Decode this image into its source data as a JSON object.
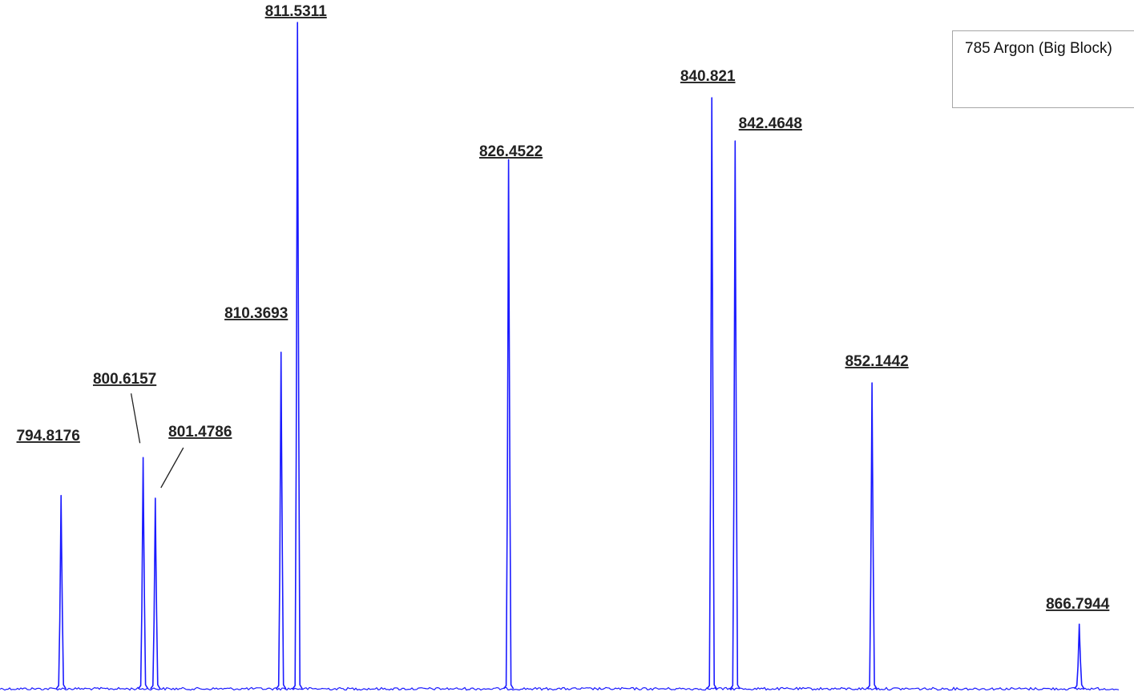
{
  "chart_data": {
    "type": "line",
    "title": "",
    "xlabel": "",
    "ylabel": "",
    "legend": {
      "entries": [
        "785 Argon (Big Block)"
      ],
      "placement": "top-right"
    },
    "series": [
      {
        "name": "785 Argon (Big Block)",
        "color": "#1a1aff"
      }
    ],
    "x_unit": "peak label value",
    "xlim": [
      790.5,
      869.7
    ],
    "ylim": [
      0,
      100
    ],
    "grid": false,
    "axes_visible": false,
    "peaks": [
      {
        "x": 794.8176,
        "label": "794.8176",
        "height": 29.0
      },
      {
        "x": 800.6157,
        "label": "800.6157",
        "height": 34.7
      },
      {
        "x": 801.4786,
        "label": "801.4786",
        "height": 28.6
      },
      {
        "x": 810.3693,
        "label": "810.3693",
        "height": 50.5
      },
      {
        "x": 811.5311,
        "label": "811.5311",
        "height": 100.0
      },
      {
        "x": 826.4522,
        "label": "826.4522",
        "height": 79.4
      },
      {
        "x": 840.821,
        "label": "840.821",
        "height": 88.7
      },
      {
        "x": 842.4648,
        "label": "842.4648",
        "height": 82.2
      },
      {
        "x": 852.1442,
        "label": "852.1442",
        "height": 45.9
      },
      {
        "x": 866.7944,
        "label": "866.7944",
        "height": 9.7
      }
    ]
  }
}
